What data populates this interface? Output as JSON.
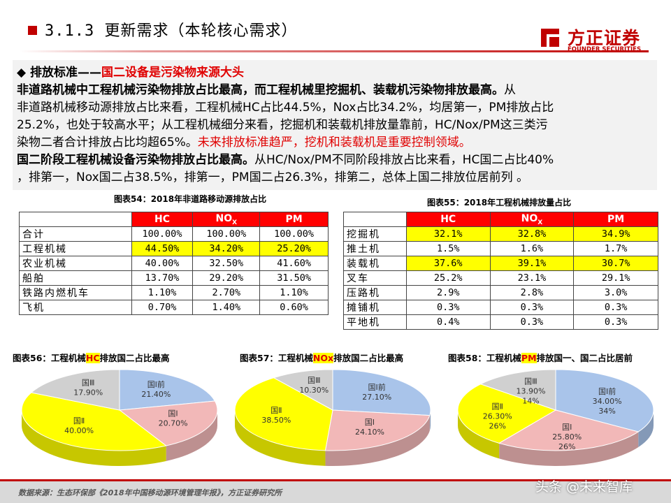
{
  "header": {
    "title": "3.1.3 更新需求（本轮核心需求）",
    "logo_cn": "方正证券",
    "logo_en": "FOUNDER SECURITIES"
  },
  "textbox": {
    "heading_prefix": "◆ 排放标准——",
    "heading_red": "国二设备是污染物来源大头",
    "p1_bold": "非道路机械中工程机械污染物排放占比最高，而工程机械里挖掘机、装载机污染物排放最高。",
    "p1_tail": "从",
    "l2": "非道路机械移动源排放占比来看，工程机械HC占比44.5%，Nox占比34.2%，均居第一，PM排放占比",
    "l3": "25.2%，也处于较高水平；从工程机械细分来看，挖掘机和装载机排放量靠前，HC/Nox/PM这三类污",
    "l4_normal": "染物二者合计排放占比均超65%。",
    "l4_red": "未来排放标准趋严，挖机和装载机是重要控制领域。",
    "l5_bold": "国二阶段工程机械设备污染物排放占比最高。",
    "l5_tail": "从HC/Nox/PM不同阶段排放占比来看，HC国二占比40%",
    "l6": "，排第一，Nox国二占38.5%，排第一，PM国二占26.3%，排第二，总体上国二排放位居前列 。"
  },
  "table54": {
    "caption": "图表54：2018年非道路移动源排放占比",
    "headers": [
      "HC",
      "NO",
      "PM"
    ],
    "nox_sub": "X",
    "rows": [
      {
        "label": "合计",
        "vals": [
          "100.00%",
          "100.00%",
          "100.00%"
        ],
        "hl": false
      },
      {
        "label": "工程机械",
        "vals": [
          "44.50%",
          "34.20%",
          "25.20%"
        ],
        "hl": true
      },
      {
        "label": "农业机械",
        "vals": [
          "40.00%",
          "32.50%",
          "41.60%"
        ],
        "hl": false
      },
      {
        "label": "船舶",
        "vals": [
          "13.70%",
          "29.20%",
          "31.50%"
        ],
        "hl": false
      },
      {
        "label": "铁路内燃机车",
        "vals": [
          "1.10%",
          "2.70%",
          "1.10%"
        ],
        "hl": false
      },
      {
        "label": "飞机",
        "vals": [
          "0.70%",
          "1.40%",
          "0.60%"
        ],
        "hl": false
      }
    ]
  },
  "table55": {
    "caption": "图表55：2018年工程机械排放量占比",
    "headers": [
      "HC",
      "NO",
      "PM"
    ],
    "nox_sub": "X",
    "rows": [
      {
        "label": "挖掘机",
        "vals": [
          "32.1%",
          "32.8%",
          "34.9%"
        ],
        "hl": true
      },
      {
        "label": "推土机",
        "vals": [
          "1.5%",
          "1.6%",
          "1.7%"
        ],
        "hl": false
      },
      {
        "label": "装载机",
        "vals": [
          "37.6%",
          "39.1%",
          "30.7%"
        ],
        "hl": true
      },
      {
        "label": "叉车",
        "vals": [
          "25.2%",
          "23.1%",
          "29.1%"
        ],
        "hl": false
      },
      {
        "label": "压路机",
        "vals": [
          "2.9%",
          "2.8%",
          "3.0%"
        ],
        "hl": false
      },
      {
        "label": "摊铺机",
        "vals": [
          "0.3%",
          "0.3%",
          "0.3%"
        ],
        "hl": false
      },
      {
        "label": "平地机",
        "vals": [
          "0.4%",
          "0.3%",
          "0.3%"
        ],
        "hl": false
      }
    ]
  },
  "chart_data": [
    {
      "type": "pie",
      "title_pre": "图表56：工程机械",
      "title_hl": "HC",
      "title_post": "排放国二占比最高",
      "categories": [
        "国Ⅰ前",
        "国Ⅰ",
        "国Ⅱ",
        "国Ⅲ"
      ],
      "values": [
        21.4,
        20.7,
        40.0,
        17.9
      ],
      "value_labels": [
        "21.40%",
        "20.70%",
        "40.00%",
        "17.90%"
      ],
      "colors": [
        "#a9c4ea",
        "#f2b8b8",
        "#ffff00",
        "#d0d0d0"
      ]
    },
    {
      "type": "pie",
      "title_pre": "图表57：工程机械",
      "title_hl": "NOx",
      "title_post": "排放国二占比最高",
      "categories": [
        "国Ⅰ前",
        "国Ⅰ",
        "国Ⅱ",
        "国Ⅲ"
      ],
      "values": [
        27.1,
        24.1,
        38.5,
        10.3
      ],
      "value_labels": [
        "27.10%",
        "24.10%",
        "38.50%",
        "10.30%"
      ],
      "colors": [
        "#a9c4ea",
        "#f2b8b8",
        "#ffff00",
        "#d0d0d0"
      ]
    },
    {
      "type": "pie",
      "title_pre": "图表58：工程机械",
      "title_hl": "PM",
      "title_post": "排放国一、国二占比居前",
      "categories": [
        "国Ⅰ前",
        "国Ⅰ",
        "国Ⅱ",
        "国Ⅲ"
      ],
      "values": [
        34.0,
        25.8,
        26.3,
        13.9
      ],
      "value_labels": [
        "34.00%",
        "25.80%",
        "26.30%",
        "13.90%"
      ],
      "extra_labels": [
        "34%",
        "26%",
        "26%",
        "14%"
      ],
      "colors": [
        "#a9c4ea",
        "#f2b8b8",
        "#ffff00",
        "#d0d0d0"
      ]
    }
  ],
  "footer": {
    "source": "数据来源：生态环保部《2018年中国移动源环境管理年报》，方正证券研究所",
    "watermark": "头条 @未来智库"
  }
}
